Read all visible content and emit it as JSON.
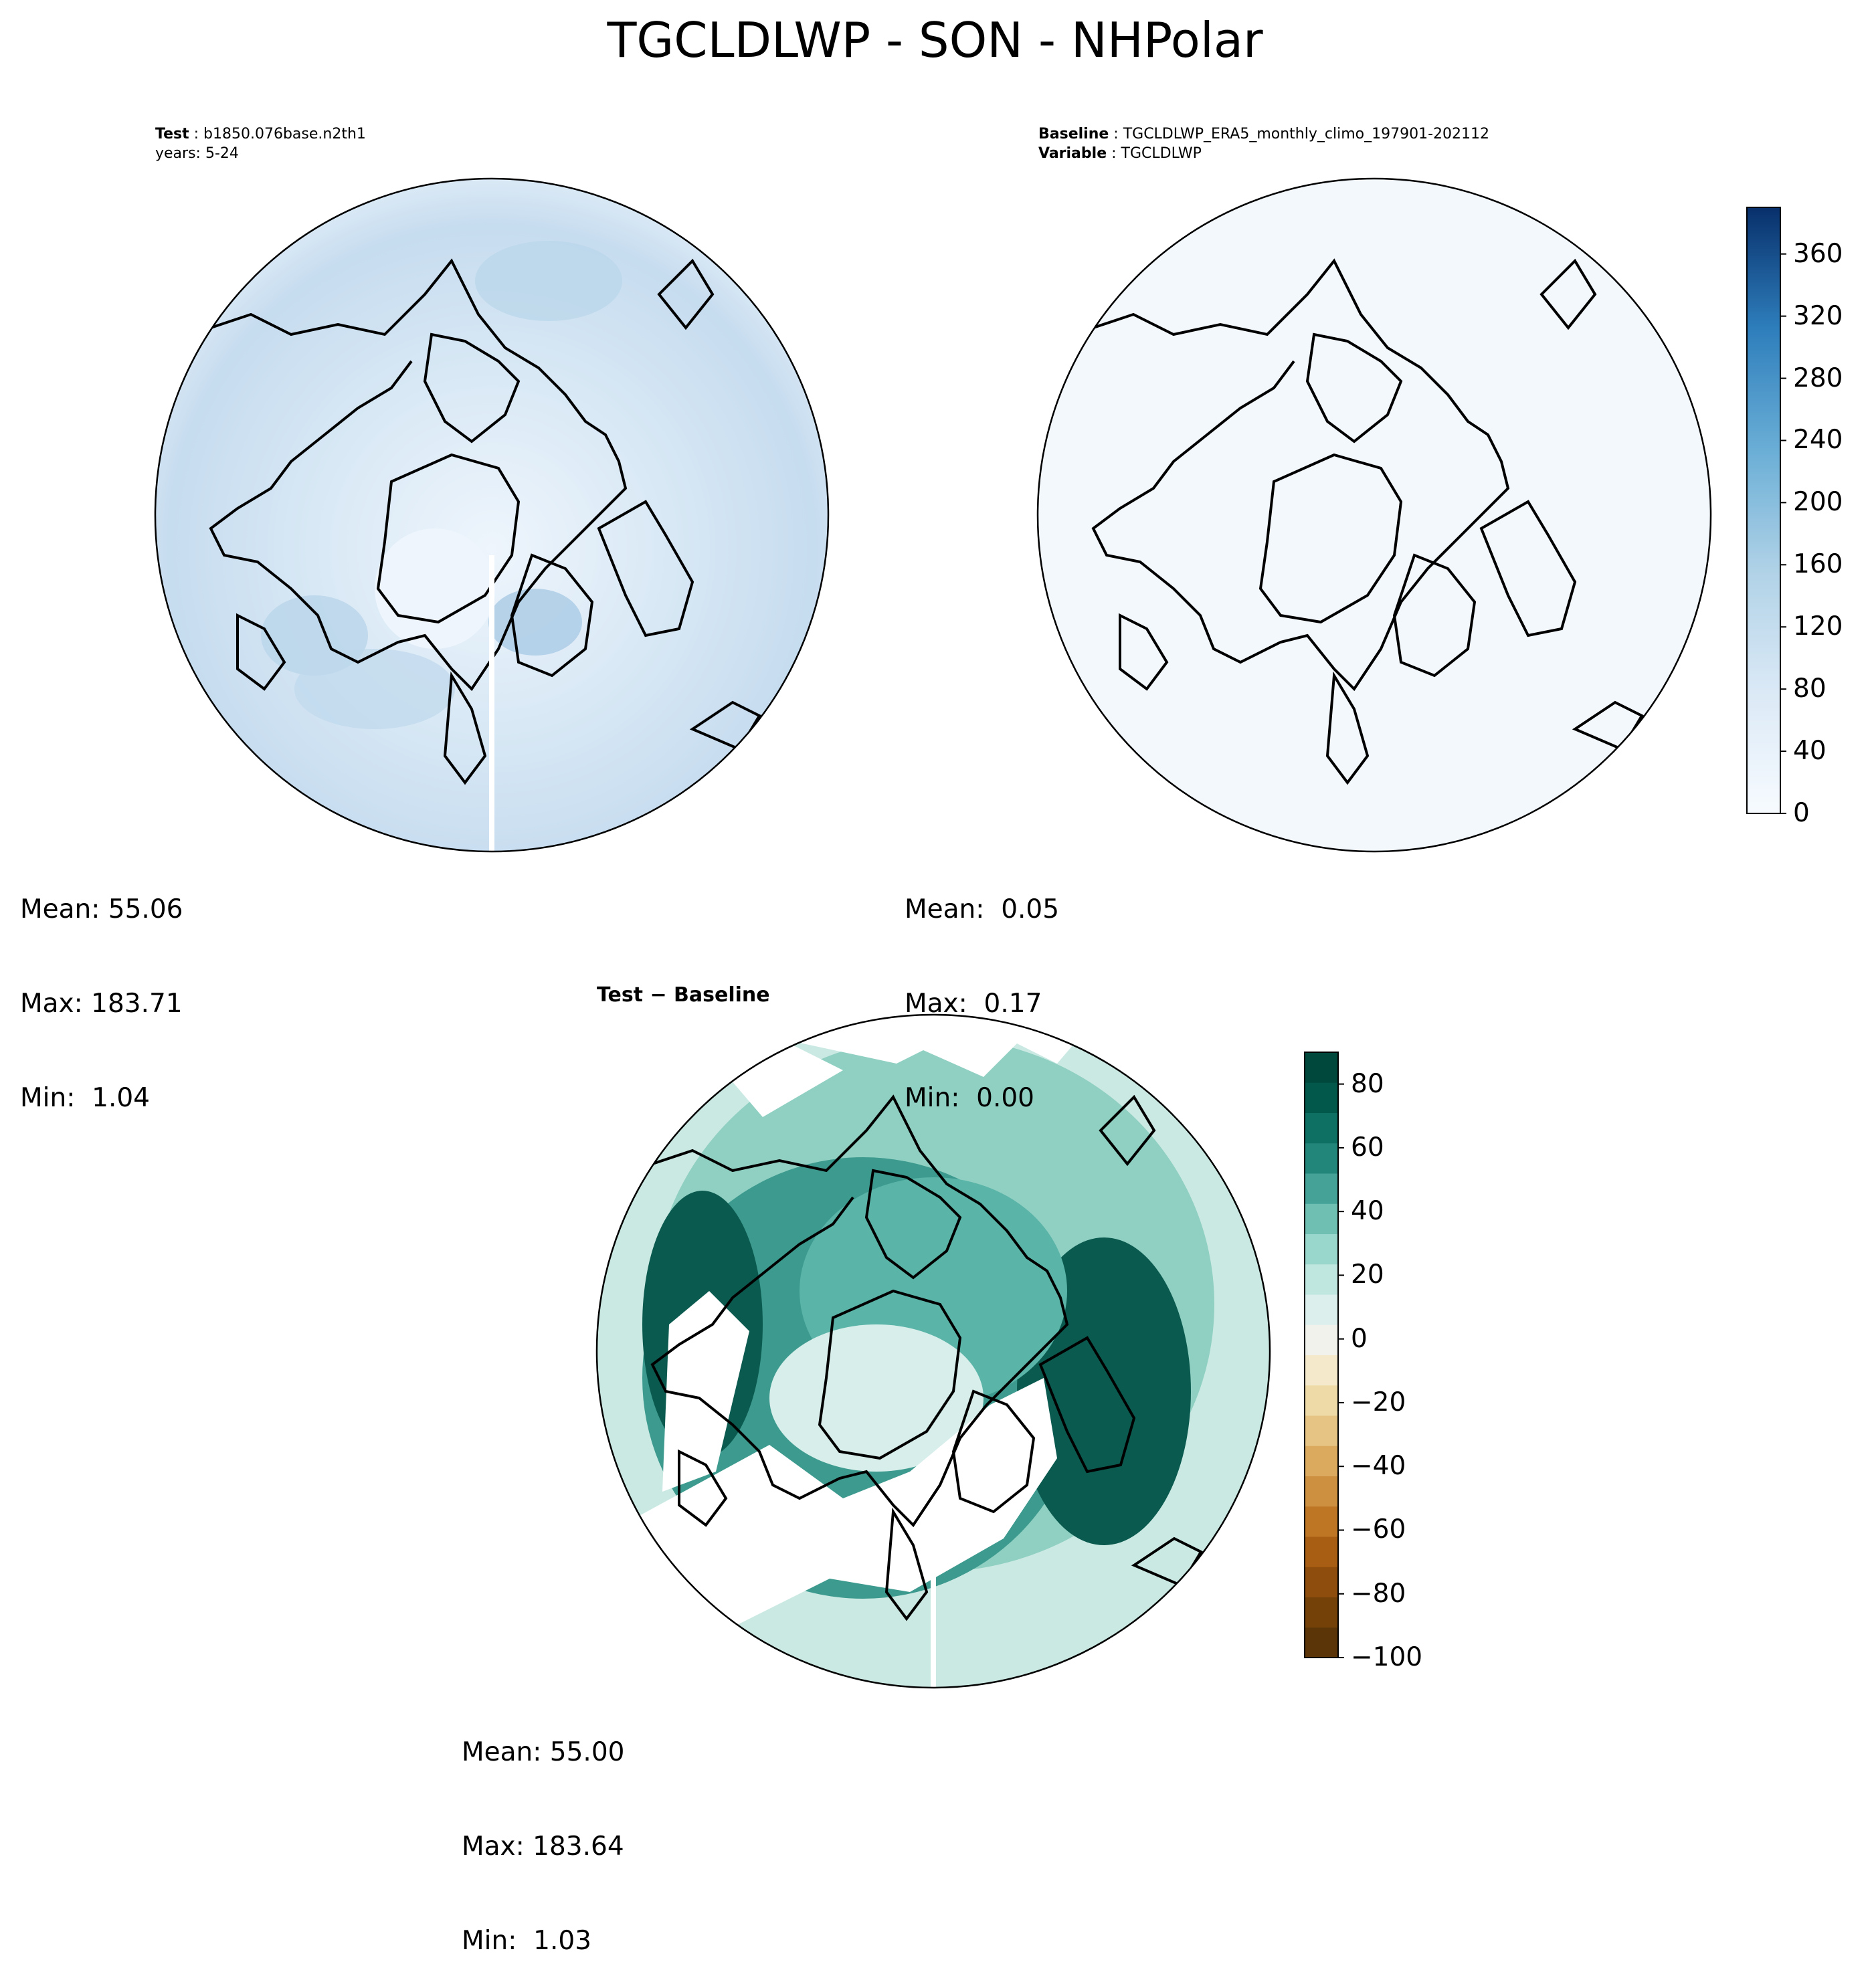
{
  "title": "TGCLDLWP - SON - NHPolar",
  "panels": {
    "test": {
      "label_key": "Test",
      "label_value": "b1850.076base.n2th1",
      "years_line": "years: 5-24",
      "mean": "Mean: 55.06",
      "max": "Max: 183.71",
      "min": "Min:  1.04"
    },
    "baseline": {
      "label_key": "Baseline",
      "label_value": "TGCLDLWP_ERA5_monthly_climo_197901-202112",
      "variable_key": "Variable",
      "variable_value": "TGCLDLWP",
      "mean": "Mean:  0.05",
      "max": "Max:  0.17",
      "min": "Min:  0.00"
    },
    "diff": {
      "title": "Test − Baseline",
      "mean": "Mean: 55.00",
      "max": "Max: 183.64",
      "min": "Min:  1.03"
    }
  },
  "colorbar_top": {
    "colormap": "Blues",
    "ticks": [
      "0",
      "40",
      "80",
      "120",
      "160",
      "200",
      "240",
      "280",
      "320",
      "360"
    ],
    "range": [
      0,
      390
    ]
  },
  "colorbar_diff": {
    "colormap": "BrBG",
    "ticks": [
      "80",
      "60",
      "40",
      "20",
      "0",
      "−20",
      "−40",
      "−60",
      "−80",
      "−100"
    ],
    "range": [
      -100,
      90
    ]
  },
  "colors": {
    "land_outline": "#000000",
    "test_field": "#d6e6f4",
    "baseline_field": "#f3f8fd",
    "diff_high": "#0b5a4f",
    "diff_mid": "#5ab4a8",
    "diff_low": "#d7eeea"
  }
}
